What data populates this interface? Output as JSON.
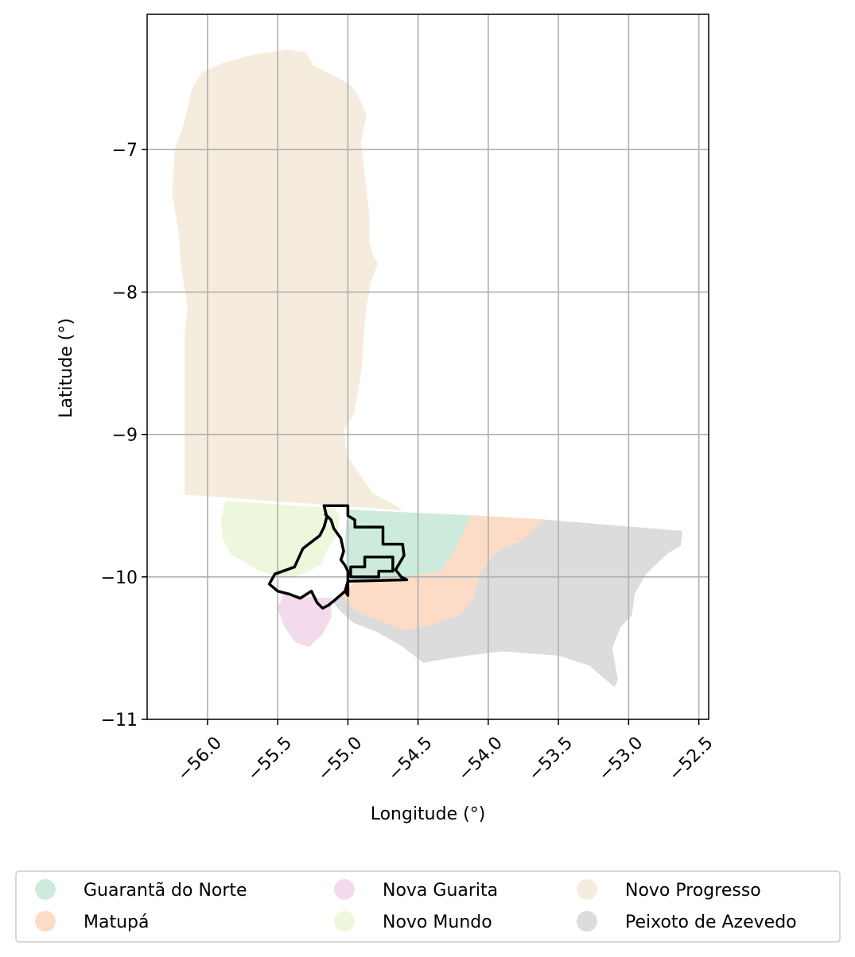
{
  "chart_data": {
    "type": "map",
    "xlabel": "Longitude (°)",
    "ylabel": "Latitude (°)",
    "xlim": [
      -56.43,
      -52.43
    ],
    "ylim": [
      -11.0,
      -6.05
    ],
    "x_ticks": [
      -56.0,
      -55.5,
      -55.0,
      -54.5,
      -54.0,
      -53.5,
      -53.0,
      -52.5
    ],
    "x_tick_labels": [
      "−56.0",
      "−55.5",
      "−55.0",
      "−54.5",
      "−54.0",
      "−53.5",
      "−53.0",
      "−52.5"
    ],
    "y_ticks": [
      -7,
      -8,
      -9,
      -10,
      -11
    ],
    "y_tick_labels": [
      "−7",
      "−8",
      "−9",
      "−10",
      "−11"
    ],
    "grid": true,
    "legend_position": "below",
    "legend": [
      {
        "name": "Guarantã do Norte",
        "color": "#cdebdc"
      },
      {
        "name": "Matupá",
        "color": "#fcdcc7"
      },
      {
        "name": "Nova Guarita",
        "color": "#f4dbeb"
      },
      {
        "name": "Novo Mundo",
        "color": "#edf7dc"
      },
      {
        "name": "Novo Progresso",
        "color": "#f5ecde"
      },
      {
        "name": "Peixoto de Azevedo",
        "color": "#dcdcdc"
      }
    ],
    "regions": [
      {
        "name": "Novo Progresso",
        "coords": [
          [
            -55.25,
            -6.41
          ],
          [
            -55.17,
            -6.45
          ],
          [
            -55.07,
            -6.5
          ],
          [
            -54.98,
            -6.55
          ],
          [
            -54.93,
            -6.62
          ],
          [
            -54.87,
            -6.76
          ],
          [
            -54.91,
            -6.95
          ],
          [
            -54.88,
            -7.2
          ],
          [
            -54.85,
            -7.45
          ],
          [
            -54.85,
            -7.65
          ],
          [
            -54.82,
            -7.75
          ],
          [
            -54.79,
            -7.8
          ],
          [
            -54.84,
            -7.93
          ],
          [
            -54.87,
            -8.1
          ],
          [
            -54.89,
            -8.3
          ],
          [
            -54.9,
            -8.5
          ],
          [
            -54.93,
            -8.7
          ],
          [
            -54.96,
            -8.85
          ],
          [
            -55.03,
            -8.97
          ],
          [
            -55.01,
            -9.15
          ],
          [
            -54.92,
            -9.28
          ],
          [
            -54.82,
            -9.42
          ],
          [
            -54.7,
            -9.48
          ],
          [
            -54.62,
            -9.53
          ],
          [
            -55.03,
            -9.5
          ],
          [
            -55.6,
            -9.46
          ],
          [
            -56.16,
            -9.42
          ],
          [
            -56.16,
            -8.3
          ],
          [
            -56.14,
            -8.1
          ],
          [
            -56.19,
            -7.8
          ],
          [
            -56.2,
            -7.6
          ],
          [
            -56.25,
            -7.3
          ],
          [
            -56.23,
            -7.0
          ],
          [
            -56.16,
            -6.8
          ],
          [
            -56.11,
            -6.58
          ],
          [
            -56.04,
            -6.46
          ],
          [
            -55.88,
            -6.39
          ],
          [
            -55.65,
            -6.33
          ],
          [
            -55.42,
            -6.3
          ],
          [
            -55.3,
            -6.32
          ]
        ]
      },
      {
        "name": "Novo Mundo",
        "coords": [
          [
            -55.87,
            -9.47
          ],
          [
            -55.1,
            -9.52
          ],
          [
            -55.06,
            -9.57
          ],
          [
            -55.08,
            -9.7
          ],
          [
            -55.15,
            -9.81
          ],
          [
            -55.19,
            -9.91
          ],
          [
            -55.35,
            -9.99
          ],
          [
            -55.5,
            -10.0
          ],
          [
            -55.64,
            -9.95
          ],
          [
            -55.83,
            -9.84
          ],
          [
            -55.89,
            -9.73
          ],
          [
            -55.9,
            -9.6
          ]
        ]
      },
      {
        "name": "Guarantã do Norte",
        "coords": [
          [
            -55.0,
            -9.53
          ],
          [
            -54.12,
            -9.57
          ],
          [
            -54.23,
            -9.8
          ],
          [
            -54.34,
            -9.97
          ],
          [
            -54.6,
            -10.0
          ],
          [
            -54.95,
            -10.04
          ],
          [
            -55.0,
            -9.95
          ],
          [
            -55.02,
            -9.75
          ]
        ]
      },
      {
        "name": "Matupá",
        "coords": [
          [
            -54.12,
            -9.57
          ],
          [
            -53.6,
            -9.6
          ],
          [
            -53.76,
            -9.75
          ],
          [
            -53.93,
            -9.82
          ],
          [
            -54.06,
            -9.98
          ],
          [
            -54.1,
            -10.15
          ],
          [
            -54.2,
            -10.27
          ],
          [
            -54.34,
            -10.32
          ],
          [
            -54.58,
            -10.38
          ],
          [
            -54.8,
            -10.3
          ],
          [
            -54.95,
            -10.24
          ],
          [
            -55.05,
            -10.13
          ],
          [
            -54.95,
            -10.04
          ],
          [
            -54.6,
            -10.0
          ],
          [
            -54.34,
            -9.97
          ],
          [
            -54.23,
            -9.8
          ]
        ]
      },
      {
        "name": "Peixoto de Azevedo",
        "coords": [
          [
            -53.6,
            -9.6
          ],
          [
            -52.62,
            -9.68
          ],
          [
            -52.63,
            -9.78
          ],
          [
            -52.72,
            -9.83
          ],
          [
            -52.88,
            -9.98
          ],
          [
            -52.96,
            -10.12
          ],
          [
            -52.98,
            -10.27
          ],
          [
            -53.06,
            -10.35
          ],
          [
            -53.12,
            -10.5
          ],
          [
            -53.08,
            -10.72
          ],
          [
            -53.1,
            -10.77
          ],
          [
            -53.28,
            -10.62
          ],
          [
            -53.5,
            -10.55
          ],
          [
            -53.9,
            -10.52
          ],
          [
            -54.15,
            -10.55
          ],
          [
            -54.35,
            -10.58
          ],
          [
            -54.46,
            -10.6
          ],
          [
            -54.62,
            -10.48
          ],
          [
            -54.8,
            -10.38
          ],
          [
            -54.96,
            -10.32
          ],
          [
            -55.05,
            -10.24
          ],
          [
            -55.1,
            -10.18
          ],
          [
            -55.05,
            -10.13
          ],
          [
            -54.95,
            -10.24
          ],
          [
            -54.8,
            -10.3
          ],
          [
            -54.58,
            -10.38
          ],
          [
            -54.34,
            -10.32
          ],
          [
            -54.2,
            -10.27
          ],
          [
            -54.1,
            -10.15
          ],
          [
            -54.06,
            -9.98
          ],
          [
            -53.93,
            -9.82
          ],
          [
            -53.76,
            -9.75
          ]
        ]
      },
      {
        "name": "Nova Guarita",
        "coords": [
          [
            -55.45,
            -10.12
          ],
          [
            -55.2,
            -10.15
          ],
          [
            -55.12,
            -10.15
          ],
          [
            -55.12,
            -10.28
          ],
          [
            -55.18,
            -10.4
          ],
          [
            -55.28,
            -10.49
          ],
          [
            -55.37,
            -10.46
          ],
          [
            -55.45,
            -10.35
          ],
          [
            -55.5,
            -10.22
          ]
        ]
      }
    ],
    "outlines": [
      [
        [
          -55.17,
          -9.5
        ],
        [
          -55.0,
          -9.5
        ],
        [
          -55.0,
          -9.57
        ],
        [
          -54.95,
          -9.6
        ],
        [
          -54.95,
          -9.65
        ],
        [
          -54.75,
          -9.65
        ],
        [
          -54.75,
          -9.77
        ],
        [
          -54.61,
          -9.77
        ],
        [
          -54.6,
          -9.85
        ],
        [
          -54.66,
          -9.95
        ],
        [
          -54.62,
          -10.0
        ],
        [
          -54.58,
          -10.02
        ],
        [
          -55.0,
          -10.03
        ],
        [
          -55.02,
          -10.1
        ],
        [
          -55.0,
          -10.13
        ],
        [
          -55.0,
          -9.96
        ],
        [
          -55.02,
          -9.92
        ],
        [
          -55.05,
          -9.88
        ],
        [
          -55.03,
          -9.82
        ],
        [
          -55.05,
          -9.73
        ],
        [
          -55.1,
          -9.66
        ],
        [
          -55.12,
          -9.6
        ],
        [
          -55.16,
          -9.56
        ]
      ],
      [
        [
          -55.17,
          -9.5
        ],
        [
          -55.15,
          -9.58
        ],
        [
          -55.17,
          -9.65
        ],
        [
          -55.2,
          -9.71
        ],
        [
          -55.32,
          -9.8
        ],
        [
          -55.38,
          -9.93
        ],
        [
          -55.52,
          -9.98
        ],
        [
          -55.56,
          -10.05
        ],
        [
          -55.5,
          -10.1
        ],
        [
          -55.42,
          -10.12
        ],
        [
          -55.34,
          -10.15
        ],
        [
          -55.26,
          -10.1
        ],
        [
          -55.22,
          -10.18
        ],
        [
          -55.18,
          -10.22
        ],
        [
          -55.14,
          -10.2
        ],
        [
          -55.09,
          -10.16
        ],
        [
          -55.02,
          -10.1
        ]
      ],
      [
        [
          -54.98,
          -9.93
        ],
        [
          -54.88,
          -9.93
        ],
        [
          -54.88,
          -9.86
        ],
        [
          -54.68,
          -9.86
        ],
        [
          -54.68,
          -9.96
        ],
        [
          -54.78,
          -9.96
        ],
        [
          -54.78,
          -10.0
        ],
        [
          -54.98,
          -10.0
        ],
        [
          -54.98,
          -9.93
        ]
      ]
    ]
  }
}
